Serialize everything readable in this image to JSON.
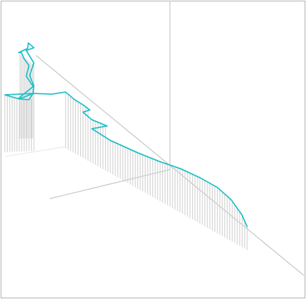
{
  "scene": {
    "background": "#ffffff",
    "frame_color": "#808080",
    "axis_color": "#c8c8c8",
    "drop_line_color": "#d3d3d3",
    "curve_color": "#20c0c8"
  }
}
